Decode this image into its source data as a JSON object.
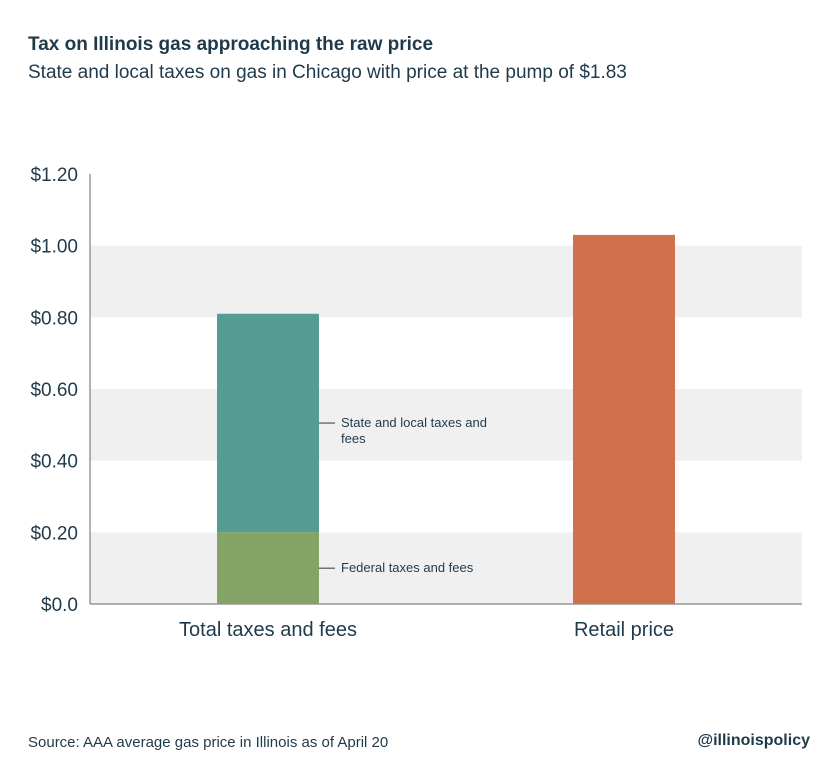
{
  "header": {
    "title": "Tax on Illinois gas approaching the raw price",
    "subtitle": "State and local taxes on gas in Chicago with price at the pump of $1.83"
  },
  "footer": {
    "source": "Source: AAA average gas price in Illinois as of April 20",
    "handle": "@illinoispolicy"
  },
  "colors": {
    "state_local": "#579c92",
    "federal": "#84a466",
    "retail": "#d1704c",
    "band": "#f0f0f0",
    "text": "#1f3a4a",
    "axis": "#666666"
  },
  "chart_data": {
    "type": "bar",
    "stacked": true,
    "categories": [
      "Total taxes and fees",
      "Retail price"
    ],
    "series": [
      {
        "name": "Federal taxes and fees",
        "values": [
          0.2,
          0
        ],
        "color": "#84a466"
      },
      {
        "name": "State and local taxes and fees",
        "values": [
          0.61,
          0
        ],
        "color": "#579c92"
      },
      {
        "name": "Retail price",
        "values": [
          0,
          1.03
        ],
        "color": "#d1704c"
      }
    ],
    "annotations": [
      {
        "text": "State and local taxes and fees",
        "series": "State and local taxes and fees",
        "category": "Total taxes and fees"
      },
      {
        "text": "Federal taxes and fees",
        "series": "Federal taxes and fees",
        "category": "Total taxes and fees"
      }
    ],
    "yticks": [
      "$0.0",
      "$0.20",
      "$0.40",
      "$0.60",
      "$0.80",
      "$1.00",
      "$1.20"
    ],
    "ytick_values": [
      0,
      0.2,
      0.4,
      0.6,
      0.8,
      1.0,
      1.2
    ],
    "ylim": [
      0,
      1.2
    ],
    "xlabel": "",
    "ylabel": "",
    "grid": "alternating horizontal bands",
    "legend": "none (inline annotations)"
  }
}
